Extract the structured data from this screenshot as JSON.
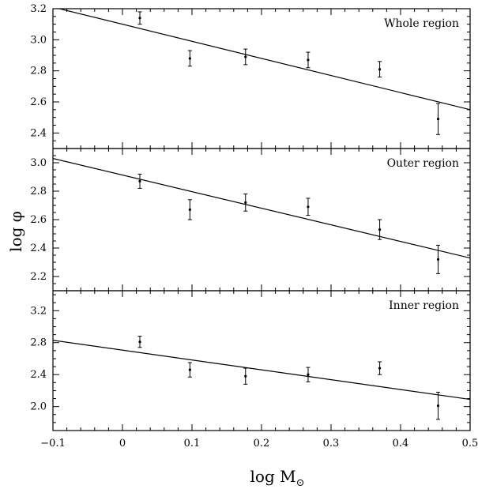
{
  "chart_data": {
    "type": "scatter",
    "xlabel": "log M",
    "xlabel_sub": "⊙",
    "ylabel": "log φ",
    "xlim": [
      -0.1,
      0.5
    ],
    "xticks": [
      "−0.1",
      "0",
      "0.1",
      "0.2",
      "0.3",
      "0.4",
      "0.5"
    ],
    "xtick_values": [
      -0.1,
      0,
      0.1,
      0.2,
      0.3,
      0.4,
      0.5
    ],
    "panels": [
      {
        "label": "Whole region",
        "ylim": [
          2.3,
          3.2
        ],
        "yticks": [
          "2.4",
          "2.6",
          "2.8",
          "3.0",
          "3.2"
        ],
        "ytick_values": [
          2.4,
          2.6,
          2.8,
          3.0,
          3.2
        ],
        "x": [
          0.025,
          0.097,
          0.177,
          0.267,
          0.37,
          0.454
        ],
        "y": [
          3.14,
          2.88,
          2.89,
          2.87,
          2.81,
          2.49
        ],
        "err": [
          0.04,
          0.05,
          0.05,
          0.05,
          0.05,
          0.1
        ],
        "fit": {
          "x": [
            -0.1,
            0.5
          ],
          "y": [
            3.21,
            2.55
          ]
        }
      },
      {
        "label": "Outer region",
        "ylim": [
          2.1,
          3.1
        ],
        "yticks": [
          "2.2",
          "2.4",
          "2.6",
          "2.8",
          "3.0"
        ],
        "ytick_values": [
          2.2,
          2.4,
          2.6,
          2.8,
          3.0
        ],
        "x": [
          0.025,
          0.097,
          0.177,
          0.267,
          0.37,
          0.454
        ],
        "y": [
          2.87,
          2.67,
          2.72,
          2.69,
          2.53,
          2.32
        ],
        "err": [
          0.05,
          0.07,
          0.06,
          0.06,
          0.07,
          0.1
        ],
        "fit": {
          "x": [
            -0.1,
            0.5
          ],
          "y": [
            3.03,
            2.33
          ]
        }
      },
      {
        "label": "Inner region",
        "ylim": [
          1.7,
          3.45
        ],
        "yticks": [
          "2.0",
          "2.4",
          "2.8",
          "3.2"
        ],
        "ytick_values": [
          2.0,
          2.4,
          2.8,
          3.2
        ],
        "x": [
          0.025,
          0.097,
          0.177,
          0.267,
          0.37,
          0.454
        ],
        "y": [
          2.81,
          2.46,
          2.38,
          2.4,
          2.48,
          2.01
        ],
        "err": [
          0.07,
          0.09,
          0.1,
          0.09,
          0.08,
          0.17
        ],
        "fit": {
          "x": [
            -0.1,
            0.5
          ],
          "y": [
            2.83,
            2.09
          ]
        }
      }
    ]
  }
}
